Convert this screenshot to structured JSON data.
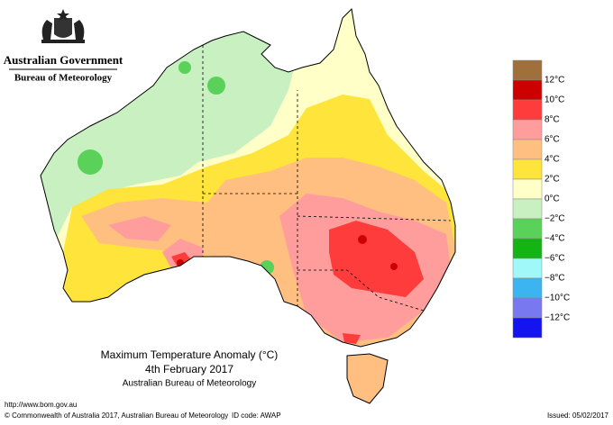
{
  "header": {
    "government": "Australian Government",
    "agency": "Bureau of Meteorology"
  },
  "legend": {
    "labels": [
      "12°C",
      "10°C",
      "8°C",
      "6°C",
      "4°C",
      "2°C",
      "0°C",
      "−2°C",
      "−4°C",
      "−6°C",
      "−8°C",
      "−10°C",
      "−12°C"
    ],
    "colors": [
      "#a0703c",
      "#cc0000",
      "#ff3c3c",
      "#ff9c9c",
      "#ffbf80",
      "#ffe43c",
      "#ffffc8",
      "#c8f0c0",
      "#5ad25a",
      "#14b414",
      "#a0f8f8",
      "#3cb4f0",
      "#7878f0",
      "#1414f0"
    ]
  },
  "caption": {
    "title": "Maximum Temperature Anomaly (°C)",
    "date": "4th February 2017",
    "source": "Australian Bureau of Meteorology"
  },
  "footer": {
    "url": "http://www.bom.gov.au",
    "copyright": "© Commonwealth of Australia 2017, Australian Bureau of Meteorology",
    "id_code": "ID code: AWAP",
    "issued": "Issued: 05/02/2017"
  }
}
